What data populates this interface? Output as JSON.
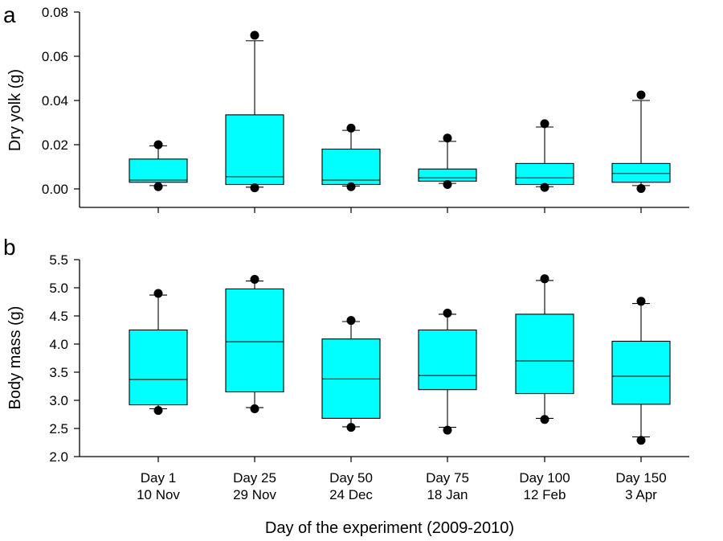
{
  "figure": {
    "xlabel": "Day of the experiment (2009-2010)",
    "categories": [
      {
        "day": "Day 1",
        "date": "10 Nov"
      },
      {
        "day": "Day 25",
        "date": "29 Nov"
      },
      {
        "day": "Day 50",
        "date": "24 Dec"
      },
      {
        "day": "Day 75",
        "date": "18 Jan"
      },
      {
        "day": "Day 100",
        "date": "12 Feb"
      },
      {
        "day": "Day 150",
        "date": "3 Apr"
      }
    ]
  },
  "colors": {
    "box_fill": "#00ffff",
    "line": "#000000",
    "outlier": "#000000"
  },
  "chart_data": [
    {
      "type": "box",
      "panel_label": "a",
      "title": "",
      "ylabel": "Dry yolk (g)",
      "ylim": [
        0.0,
        0.08
      ],
      "yticks": [
        0.0,
        0.02,
        0.04,
        0.06,
        0.08
      ],
      "ytick_labels": [
        "0.00",
        "0.02",
        "0.04",
        "0.06",
        "0.08"
      ],
      "categories": [
        "Day 1 10 Nov",
        "Day 25 29 Nov",
        "Day 50 24 Dec",
        "Day 75 18 Jan",
        "Day 100 12 Feb",
        "Day 150 3 Apr"
      ],
      "boxes": [
        {
          "whisker_low": 0.0015,
          "q1": 0.003,
          "median": 0.004,
          "q3": 0.0135,
          "whisker_high": 0.0195,
          "outliers": [
            0.001,
            0.02
          ]
        },
        {
          "whisker_low": 0.0008,
          "q1": 0.002,
          "median": 0.0055,
          "q3": 0.0335,
          "whisker_high": 0.067,
          "outliers": [
            0.0005,
            0.0695
          ]
        },
        {
          "whisker_low": 0.0013,
          "q1": 0.002,
          "median": 0.004,
          "q3": 0.018,
          "whisker_high": 0.0265,
          "outliers": [
            0.001,
            0.0275
          ]
        },
        {
          "whisker_low": 0.0025,
          "q1": 0.0035,
          "median": 0.005,
          "q3": 0.009,
          "whisker_high": 0.0215,
          "outliers": [
            0.002,
            0.023
          ]
        },
        {
          "whisker_low": 0.001,
          "q1": 0.002,
          "median": 0.005,
          "q3": 0.0115,
          "whisker_high": 0.028,
          "outliers": [
            0.0007,
            0.0295
          ]
        },
        {
          "whisker_low": 0.0015,
          "q1": 0.003,
          "median": 0.007,
          "q3": 0.0115,
          "whisker_high": 0.04,
          "outliers": [
            0.0002,
            0.0425
          ]
        }
      ]
    },
    {
      "type": "box",
      "panel_label": "b",
      "title": "",
      "ylabel": "Body mass (g)",
      "ylim": [
        2.0,
        5.5
      ],
      "yticks": [
        2.0,
        2.5,
        3.0,
        3.5,
        4.0,
        4.5,
        5.0,
        5.5
      ],
      "ytick_labels": [
        "2.0",
        "2.5",
        "3.0",
        "3.5",
        "4.0",
        "4.5",
        "5.0",
        "5.5"
      ],
      "categories": [
        "Day 1 10 Nov",
        "Day 25 29 Nov",
        "Day 50 24 Dec",
        "Day 75 18 Jan",
        "Day 100 12 Feb",
        "Day 150 3 Apr"
      ],
      "boxes": [
        {
          "whisker_low": 2.85,
          "q1": 2.92,
          "median": 3.37,
          "q3": 4.25,
          "whisker_high": 4.87,
          "outliers": [
            2.82,
            4.9
          ]
        },
        {
          "whisker_low": 2.87,
          "q1": 3.15,
          "median": 4.04,
          "q3": 4.98,
          "whisker_high": 5.12,
          "outliers": [
            2.85,
            5.15
          ]
        },
        {
          "whisker_low": 2.53,
          "q1": 2.68,
          "median": 3.38,
          "q3": 4.09,
          "whisker_high": 4.4,
          "outliers": [
            2.52,
            4.42
          ]
        },
        {
          "whisker_low": 2.52,
          "q1": 3.19,
          "median": 3.44,
          "q3": 4.25,
          "whisker_high": 4.53,
          "outliers": [
            2.47,
            4.55
          ]
        },
        {
          "whisker_low": 2.68,
          "q1": 3.12,
          "median": 3.7,
          "q3": 4.53,
          "whisker_high": 5.13,
          "outliers": [
            2.66,
            5.16
          ]
        },
        {
          "whisker_low": 2.35,
          "q1": 2.93,
          "median": 3.43,
          "q3": 4.05,
          "whisker_high": 4.72,
          "outliers": [
            2.29,
            4.76
          ]
        }
      ]
    }
  ]
}
